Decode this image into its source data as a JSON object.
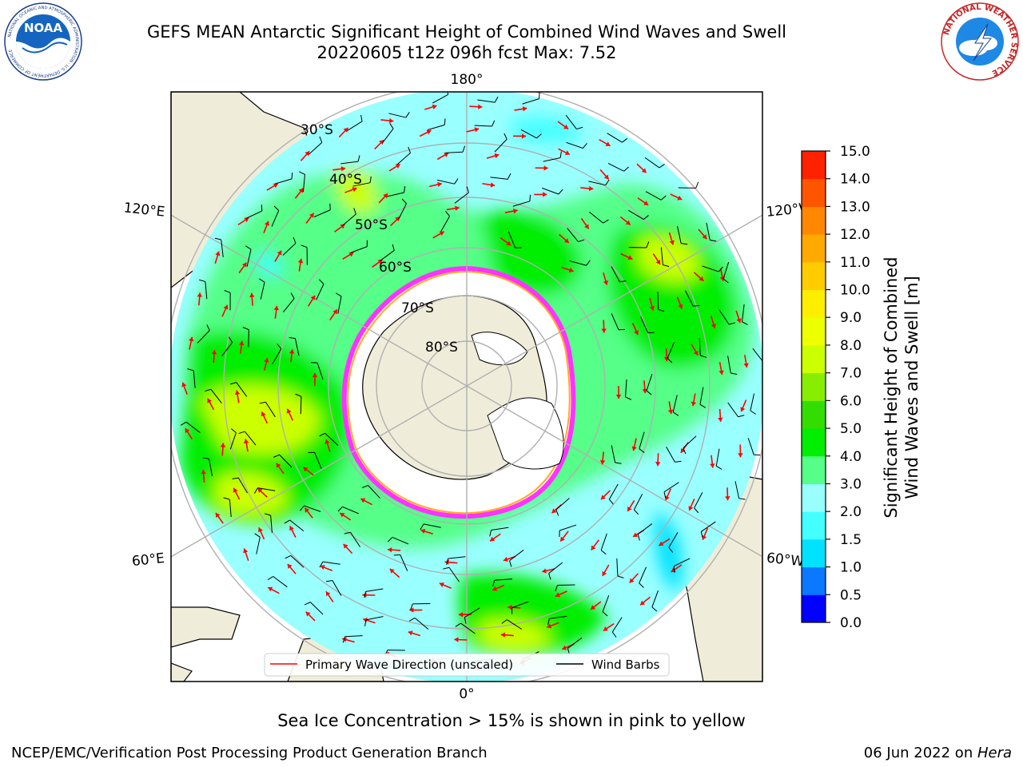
{
  "title": {
    "line1": "GEFS MEAN Antarctic Significant Height of Combined Wind Waves and Swell",
    "line2": "20220605 t12z 096h fcst   Max: 7.52"
  },
  "map": {
    "projection": "south-polar-stereographic",
    "longitude_labels": [
      {
        "text": "180°",
        "pos": "top"
      },
      {
        "text": "120°E",
        "pos": "upper-left"
      },
      {
        "text": "120°W",
        "pos": "upper-right"
      },
      {
        "text": "60°E",
        "pos": "lower-left"
      },
      {
        "text": "60°W",
        "pos": "lower-right"
      },
      {
        "text": "0°",
        "pos": "bottom"
      }
    ],
    "latitude_labels": [
      "30°S",
      "40°S",
      "50°S",
      "60°S",
      "70°S",
      "80°S"
    ],
    "land_color": "#efedd9",
    "ice_color": "#ffffff",
    "ice_edge_colors": [
      "#ff33ff",
      "#ffaa22",
      "#ffee00"
    ]
  },
  "legend": {
    "primary_wave": "Primary Wave Direction (unscaled)",
    "wind_barbs": "Wind Barbs",
    "arrow_color": "#ff0000",
    "barb_color": "#000000"
  },
  "colorbar": {
    "label_line1": "Significant Height of Combined",
    "label_line2": "Wind Waves and Swell [m]",
    "ticks": [
      "0.0",
      "0.5",
      "1.0",
      "1.5",
      "2.0",
      "3.0",
      "4.0",
      "5.0",
      "6.0",
      "7.0",
      "8.0",
      "9.0",
      "10.0",
      "11.0",
      "12.0",
      "13.0",
      "14.0",
      "15.0"
    ],
    "colors": [
      "#0000ff",
      "#0a78ff",
      "#00e2ff",
      "#44ffff",
      "#99ffff",
      "#55ff88",
      "#00ee00",
      "#33dd00",
      "#88ee00",
      "#ccff00",
      "#eeff00",
      "#ffee00",
      "#ffcc00",
      "#ffaa00",
      "#ff8800",
      "#ff5500",
      "#ff2200"
    ]
  },
  "caption": "Sea Ice Concentration > 15% is shown in pink to yellow",
  "footer": {
    "left": "NCEP/EMC/Verification Post Processing Product Generation Branch",
    "right_date": "06 Jun 2022 on ",
    "right_host": "Hera"
  },
  "logos": {
    "left": "NOAA",
    "left_ring": "NATIONAL OCEANIC AND ATMOSPHERIC ADMINISTRATION · U.S. DEPARTMENT OF COMMERCE",
    "right_ring": "NATIONAL WEATHER SERVICE"
  }
}
